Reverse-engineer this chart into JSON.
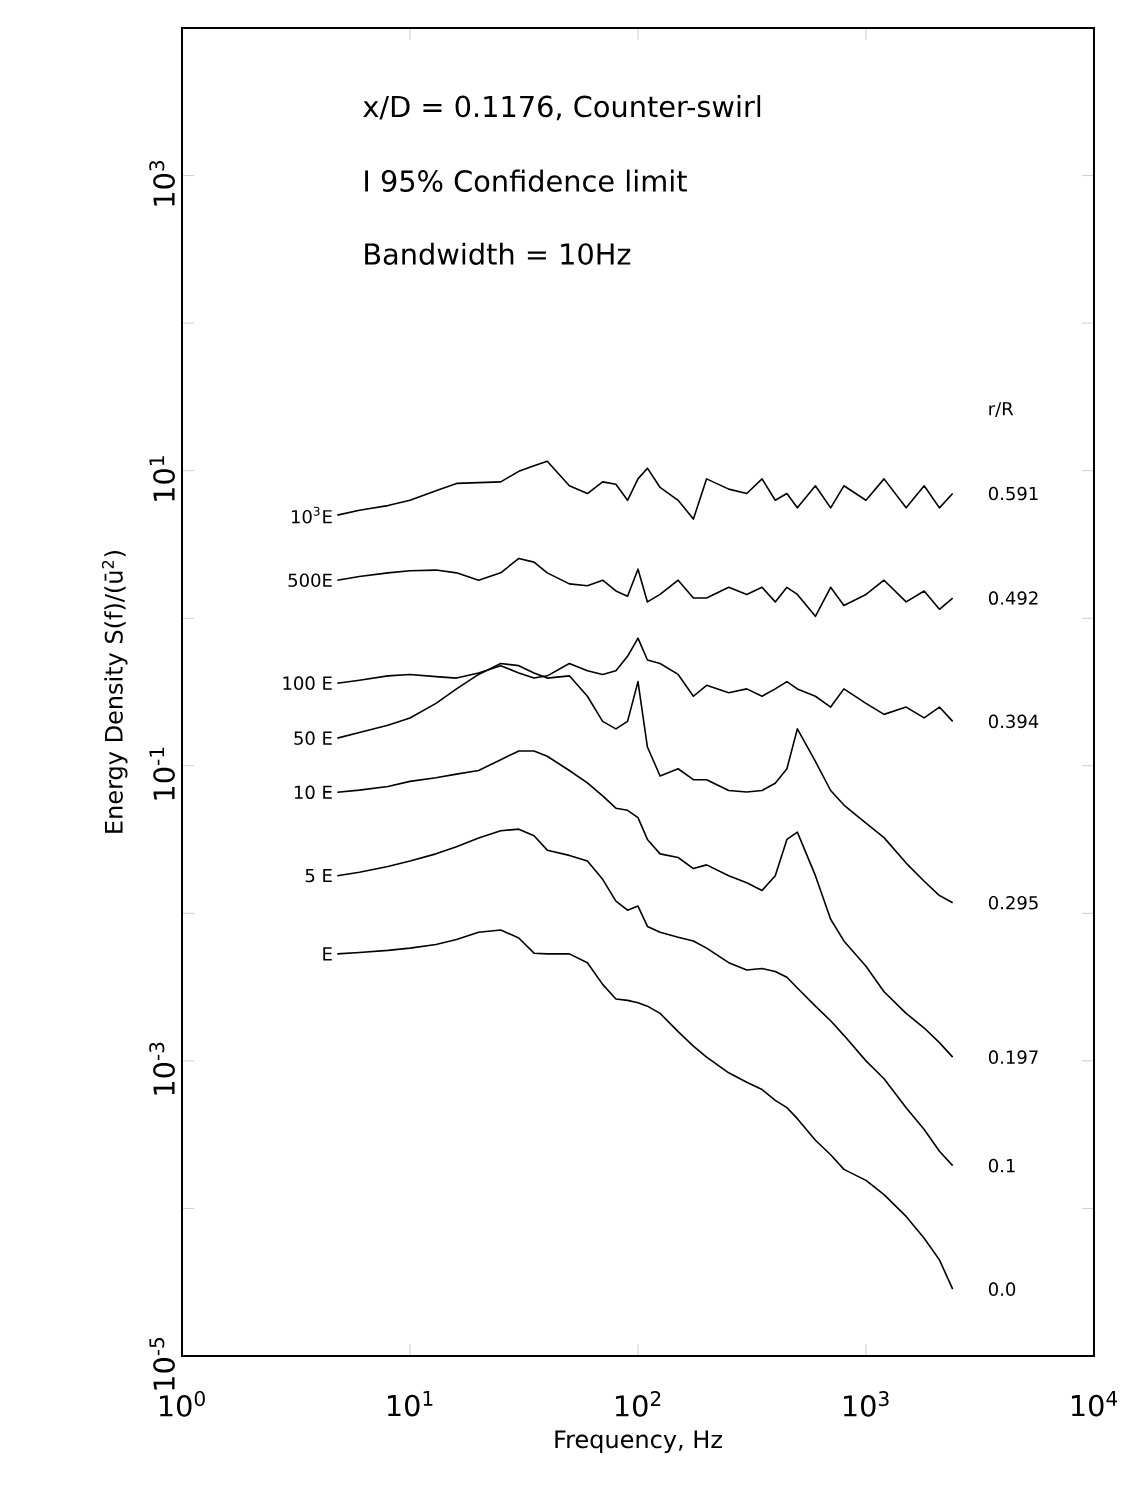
{
  "chart_data": {
    "type": "line",
    "log": "xy",
    "xlabel": "Frequency, Hz",
    "ylabel": "Energy Density  S(f)/(ū$^{2}$)",
    "xlim": [
      1,
      10000
    ],
    "ylim": [
      1e-05,
      10000
    ],
    "xticks": [
      {
        "value": 1,
        "label": "10$^{0}$"
      },
      {
        "value": 10,
        "label": "10$^{1}$"
      },
      {
        "value": 100,
        "label": "10$^{2}$"
      },
      {
        "value": 1000,
        "label": "10$^{3}$"
      },
      {
        "value": 10000,
        "label": "10$^{4}$"
      }
    ],
    "yticks": [
      {
        "value": 1e-05,
        "label": "10$^{-5}$"
      },
      {
        "value": 0.0001,
        "label": null
      },
      {
        "value": 0.001,
        "label": "10$^{-3}$"
      },
      {
        "value": 0.01,
        "label": null
      },
      {
        "value": 0.1,
        "label": "10$^{-1}$"
      },
      {
        "value": 1,
        "label": null
      },
      {
        "value": 10,
        "label": "10$^{1}$"
      },
      {
        "value": 100,
        "label": null
      },
      {
        "value": 1000,
        "label": "10$^{3}$"
      },
      {
        "value": 10000,
        "label": null
      }
    ],
    "x": [
      4.8,
      6,
      8,
      10,
      13,
      16,
      20,
      25,
      30,
      35,
      40,
      50,
      60,
      70,
      80,
      90,
      100,
      110,
      125,
      150,
      175,
      200,
      250,
      300,
      350,
      400,
      450,
      500,
      600,
      700,
      800,
      1000,
      1200,
      1500,
      1800,
      2100,
      2400
    ],
    "series": [
      {
        "name": "10$^{3}$E",
        "color": "#000000",
        "values": [
          5.0,
          5.4,
          5.8,
          6.3,
          7.3,
          8.2,
          8.3,
          8.4,
          9.9,
          10.8,
          11.6,
          7.9,
          7.0,
          8.4,
          8.1,
          6.3,
          8.8,
          10.4,
          7.7,
          6.3,
          4.7,
          8.8,
          7.5,
          7.0,
          8.8,
          6.3,
          7.0,
          5.6,
          7.9,
          5.6,
          7.9,
          6.3,
          8.8,
          5.6,
          7.9,
          5.6,
          7.0
        ]
      },
      {
        "name": "500E",
        "color": "#000000",
        "values": [
          1.81,
          1.92,
          2.03,
          2.1,
          2.12,
          2.03,
          1.81,
          2.03,
          2.54,
          2.4,
          2.03,
          1.71,
          1.66,
          1.81,
          1.53,
          1.41,
          2.15,
          1.29,
          1.45,
          1.81,
          1.37,
          1.37,
          1.62,
          1.45,
          1.62,
          1.29,
          1.62,
          1.45,
          1.03,
          1.62,
          1.22,
          1.45,
          1.81,
          1.29,
          1.53,
          1.15,
          1.37
        ]
      },
      {
        "name": "100 E",
        "color": "#000000",
        "values": [
          0.363,
          0.38,
          0.407,
          0.416,
          0.402,
          0.393,
          0.425,
          0.477,
          0.425,
          0.393,
          0.407,
          0.493,
          0.441,
          0.416,
          0.441,
          0.552,
          0.733,
          0.521,
          0.493,
          0.416,
          0.296,
          0.351,
          0.313,
          0.332,
          0.296,
          0.332,
          0.372,
          0.332,
          0.296,
          0.25,
          0.332,
          0.265,
          0.223,
          0.25,
          0.211,
          0.25,
          0.2
        ]
      },
      {
        "name": "50 E",
        "color": "#000000",
        "values": [
          0.154,
          0.168,
          0.188,
          0.211,
          0.265,
          0.332,
          0.416,
          0.493,
          0.477,
          0.425,
          0.393,
          0.407,
          0.296,
          0.2,
          0.178,
          0.2,
          0.372,
          0.134,
          0.0853,
          0.0955,
          0.0805,
          0.0805,
          0.068,
          0.0665,
          0.068,
          0.0762,
          0.0955,
          0.178,
          0.107,
          0.068,
          0.0542,
          0.0408,
          0.0326,
          0.0219,
          0.0165,
          0.0132,
          0.0118
        ]
      },
      {
        "name": "10 E",
        "color": "#000000",
        "values": [
          0.0661,
          0.0684,
          0.0724,
          0.0784,
          0.083,
          0.0878,
          0.0929,
          0.11,
          0.126,
          0.126,
          0.116,
          0.0929,
          0.0766,
          0.0625,
          0.0516,
          0.0499,
          0.0445,
          0.0317,
          0.0253,
          0.0239,
          0.0201,
          0.0213,
          0.018,
          0.0161,
          0.0143,
          0.018,
          0.0317,
          0.0355,
          0.018,
          0.00912,
          0.0065,
          0.00438,
          0.00294,
          0.0021,
          0.00167,
          0.00133,
          0.00106
        ]
      },
      {
        "name": "5 E",
        "color": "#000000",
        "values": [
          0.018,
          0.019,
          0.0208,
          0.0226,
          0.0253,
          0.0283,
          0.0324,
          0.0363,
          0.0372,
          0.0336,
          0.0268,
          0.0247,
          0.0226,
          0.017,
          0.0121,
          0.0105,
          0.0112,
          0.00815,
          0.00745,
          0.00688,
          0.0065,
          0.00581,
          0.00463,
          0.00413,
          0.00423,
          0.00404,
          0.00369,
          0.00312,
          0.00235,
          0.00187,
          0.00149,
          0.001,
          0.000757,
          0.000482,
          0.000343,
          0.000244,
          0.000195
        ]
      },
      {
        "name": "E",
        "color": "#000000",
        "values": [
          0.00531,
          0.00543,
          0.00561,
          0.00581,
          0.00615,
          0.00665,
          0.00745,
          0.00771,
          0.00681,
          0.00537,
          0.00531,
          0.00531,
          0.00463,
          0.0033,
          0.00263,
          0.00257,
          0.00248,
          0.00235,
          0.0021,
          0.00158,
          0.00126,
          0.00106,
          0.00083,
          0.000716,
          0.00064,
          0.00054,
          0.000482,
          0.000406,
          0.00029,
          0.000231,
          0.000184,
          0.000155,
          0.000124,
          8.83e-05,
          6.28e-05,
          4.48e-05,
          2.84e-05
        ]
      }
    ],
    "annotations": [
      "x/D = 0.1176,  Counter-swirl",
      "I  95%  Confidence limit",
      "Bandwidth = 10Hz",
      "r/R",
      "0.591",
      "0.492",
      "0.394",
      "0.295",
      "0.197",
      "0.1",
      "0.0"
    ]
  }
}
